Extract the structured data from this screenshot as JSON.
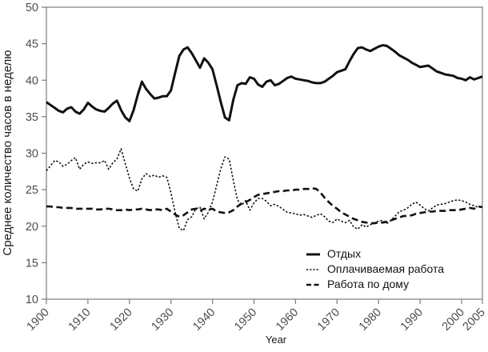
{
  "colors": {
    "background": "#ffffff",
    "line": "#111111",
    "frame": "#7d7d7d",
    "tick_label": "#4d4d4d"
  },
  "chart_data": {
    "type": "line",
    "title": "",
    "xlabel": "Year",
    "ylabel": "Среднее количество часов в неделю",
    "xlim": [
      1900,
      2005
    ],
    "ylim": [
      10,
      50
    ],
    "x_ticks": [
      1900,
      1910,
      1920,
      1930,
      1940,
      1950,
      1960,
      1970,
      1980,
      1990,
      2000,
      2005
    ],
    "y_ticks": [
      10,
      15,
      20,
      25,
      30,
      35,
      40,
      45,
      50
    ],
    "grid": false,
    "legend_position": "inside lower right",
    "x_years": {
      "start": 1900,
      "end": 2005,
      "step": 1
    },
    "series": [
      {
        "key": "leisure",
        "name": "Отдых",
        "style": "solid",
        "values": [
          37.0,
          36.6,
          36.2,
          35.8,
          35.6,
          36.1,
          36.3,
          35.7,
          35.4,
          36.0,
          36.9,
          36.4,
          36.0,
          35.8,
          35.7,
          36.2,
          36.8,
          37.2,
          35.9,
          34.9,
          34.4,
          35.9,
          38.0,
          39.8,
          38.8,
          38.1,
          37.5,
          37.6,
          37.8,
          37.8,
          38.6,
          41.0,
          43.3,
          44.2,
          44.5,
          43.7,
          42.7,
          41.7,
          43.0,
          42.4,
          41.5,
          39.3,
          37.0,
          34.9,
          34.5,
          37.3,
          39.3,
          39.6,
          39.5,
          40.4,
          40.2,
          39.4,
          39.1,
          39.8,
          40.0,
          39.3,
          39.5,
          39.9,
          40.3,
          40.5,
          40.2,
          40.1,
          40.0,
          39.9,
          39.7,
          39.6,
          39.6,
          39.8,
          40.2,
          40.6,
          41.1,
          41.3,
          41.5,
          42.6,
          43.6,
          44.4,
          44.5,
          44.2,
          44.0,
          44.3,
          44.6,
          44.8,
          44.7,
          44.3,
          43.9,
          43.4,
          43.1,
          42.8,
          42.4,
          42.1,
          41.8,
          41.9,
          42.0,
          41.6,
          41.2,
          41.0,
          40.8,
          40.7,
          40.6,
          40.3,
          40.2,
          40.0,
          40.4,
          40.1,
          40.3,
          40.5
        ]
      },
      {
        "key": "paid-work",
        "name": "Оплачиваемая работа",
        "style": "dotted",
        "values": [
          27.6,
          28.3,
          29.0,
          28.8,
          28.2,
          28.5,
          29.0,
          29.4,
          27.8,
          28.5,
          28.8,
          28.6,
          28.7,
          28.7,
          29.0,
          27.8,
          28.7,
          29.2,
          30.6,
          28.6,
          26.6,
          25.1,
          24.8,
          26.5,
          27.2,
          26.8,
          27.0,
          26.7,
          26.9,
          26.7,
          24.6,
          21.9,
          19.7,
          19.4,
          20.9,
          21.3,
          22.4,
          22.6,
          21.0,
          21.9,
          23.3,
          25.6,
          27.9,
          29.5,
          29.2,
          26.3,
          23.6,
          22.9,
          23.5,
          22.2,
          23.2,
          23.8,
          23.8,
          23.4,
          22.8,
          23.0,
          22.7,
          22.3,
          21.9,
          21.8,
          21.7,
          21.5,
          21.6,
          21.4,
          21.2,
          21.5,
          21.7,
          21.3,
          20.7,
          20.5,
          21.0,
          20.7,
          20.5,
          20.8,
          19.9,
          19.6,
          20.2,
          19.9,
          20.2,
          20.5,
          20.7,
          20.8,
          20.4,
          20.8,
          21.4,
          22.0,
          22.2,
          22.5,
          23.0,
          23.3,
          22.9,
          22.4,
          22.1,
          22.5,
          22.9,
          23.0,
          23.1,
          23.3,
          23.5,
          23.6,
          23.5,
          23.3,
          23.0,
          22.8,
          22.6,
          22.8
        ]
      },
      {
        "key": "home-work",
        "name": "Работа по дому",
        "style": "dashed",
        "values": [
          22.7,
          22.7,
          22.6,
          22.6,
          22.5,
          22.5,
          22.5,
          22.4,
          22.4,
          22.4,
          22.4,
          22.4,
          22.3,
          22.3,
          22.4,
          22.4,
          22.3,
          22.2,
          22.2,
          22.3,
          22.2,
          22.3,
          22.3,
          22.4,
          22.3,
          22.2,
          22.3,
          22.3,
          22.2,
          22.4,
          22.0,
          21.6,
          21.3,
          21.5,
          21.9,
          22.3,
          22.4,
          22.1,
          22.4,
          22.3,
          22.4,
          22.0,
          21.9,
          21.8,
          21.9,
          22.2,
          22.7,
          23.1,
          23.3,
          23.6,
          24.0,
          24.3,
          24.4,
          24.5,
          24.6,
          24.7,
          24.8,
          24.8,
          24.9,
          24.9,
          25.0,
          25.0,
          25.1,
          25.1,
          25.2,
          25.1,
          24.6,
          23.9,
          23.3,
          22.8,
          22.4,
          21.9,
          21.6,
          21.3,
          21.0,
          20.8,
          20.6,
          20.5,
          20.4,
          20.4,
          20.5,
          20.5,
          20.6,
          20.8,
          21.0,
          21.2,
          21.4,
          21.4,
          21.5,
          21.7,
          21.8,
          21.9,
          22.0,
          22.0,
          22.1,
          22.1,
          22.1,
          22.2,
          22.2,
          22.2,
          22.3,
          22.4,
          22.5,
          22.4,
          22.7,
          22.6
        ]
      }
    ]
  },
  "legend": {
    "items": [
      {
        "label": "Отдых"
      },
      {
        "label": "Оплачиваемая работа"
      },
      {
        "label": "Работа по дому"
      }
    ]
  }
}
